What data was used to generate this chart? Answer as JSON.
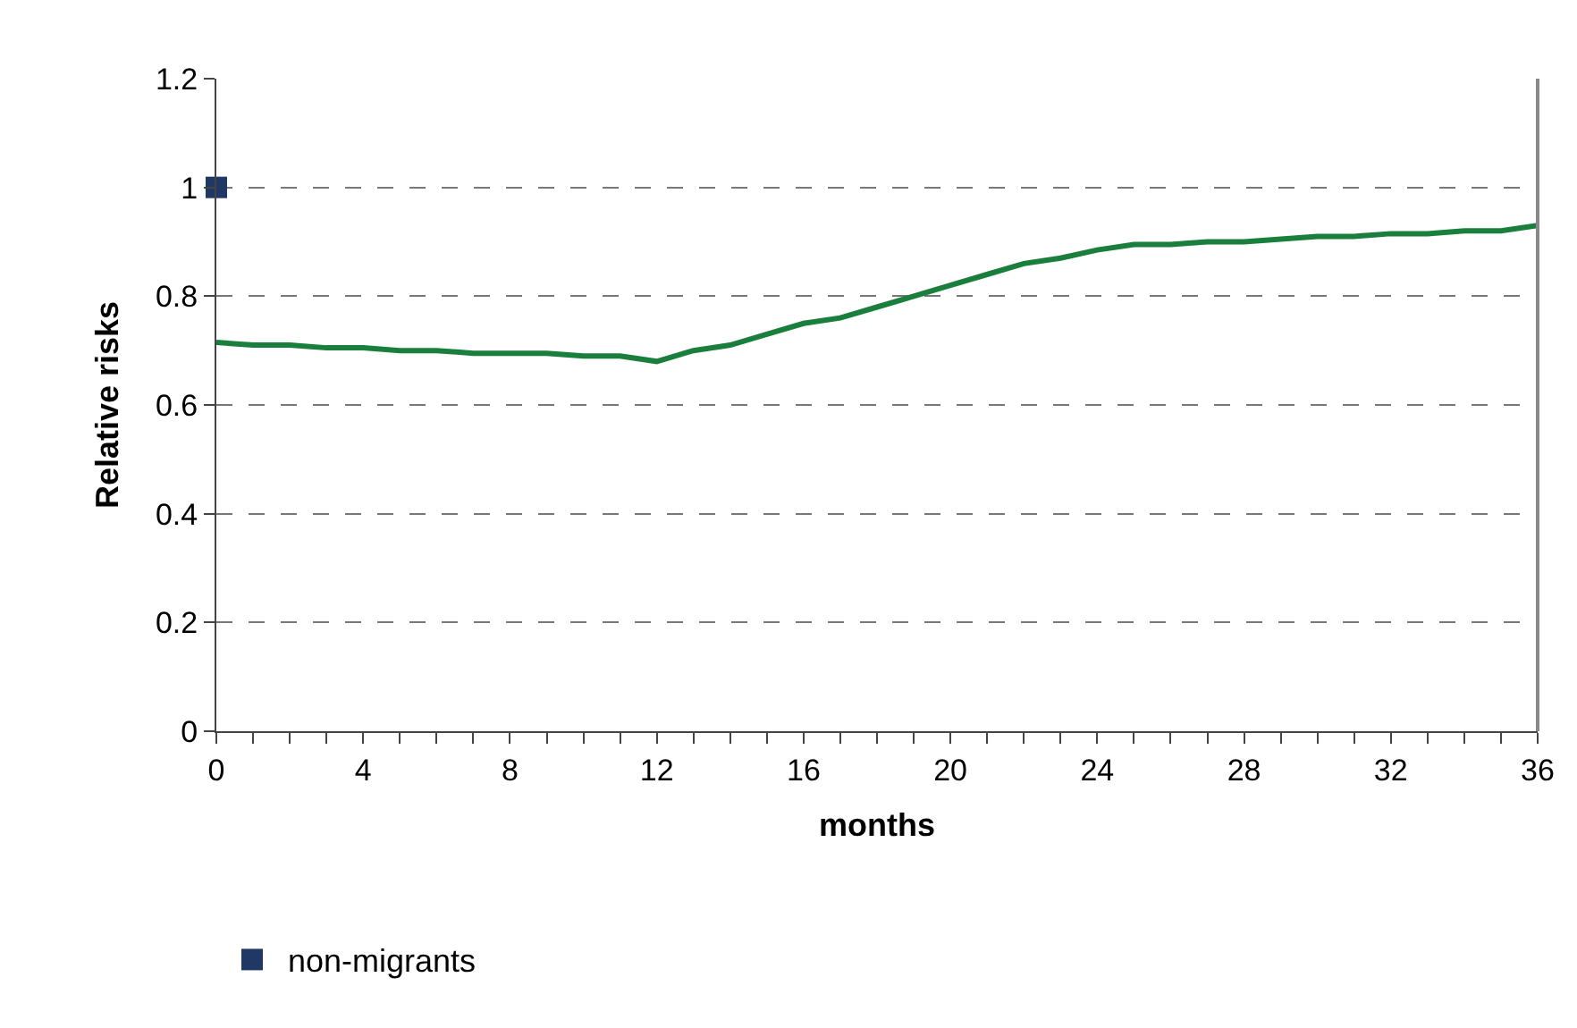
{
  "chart_data": {
    "type": "line",
    "xlabel": "months",
    "ylabel": "Relative risks",
    "xlim": [
      0,
      36
    ],
    "ylim": [
      0,
      1.2
    ],
    "xticks": [
      0,
      {
        "value": 1,
        "label": null
      },
      {
        "value": 2,
        "label": null
      },
      {
        "value": 3,
        "label": null
      },
      4,
      {
        "value": 5,
        "label": null
      },
      {
        "value": 6,
        "label": null
      },
      {
        "value": 7,
        "label": null
      },
      8,
      {
        "value": 9,
        "label": null
      },
      {
        "value": 10,
        "label": null
      },
      {
        "value": 11,
        "label": null
      },
      12,
      {
        "value": 13,
        "label": null
      },
      {
        "value": 14,
        "label": null
      },
      {
        "value": 15,
        "label": null
      },
      16,
      {
        "value": 17,
        "label": null
      },
      {
        "value": 18,
        "label": null
      },
      {
        "value": 19,
        "label": null
      },
      20,
      {
        "value": 21,
        "label": null
      },
      {
        "value": 22,
        "label": null
      },
      {
        "value": 23,
        "label": null
      },
      24,
      {
        "value": 25,
        "label": null
      },
      {
        "value": 26,
        "label": null
      },
      {
        "value": 27,
        "label": null
      },
      28,
      {
        "value": 29,
        "label": null
      },
      {
        "value": 30,
        "label": null
      },
      {
        "value": 31,
        "label": null
      },
      32,
      {
        "value": 33,
        "label": null
      },
      {
        "value": 34,
        "label": null
      },
      {
        "value": 35,
        "label": null
      },
      36
    ],
    "yticks": [
      0,
      0.2,
      0.4,
      0.6,
      0.8,
      1,
      1.2
    ],
    "grid": "y",
    "legend": "bottom left",
    "series": [
      {
        "color": "#1a7f3c",
        "marker": "none",
        "line_style": "solid",
        "x": [
          0,
          1,
          2,
          3,
          4,
          5,
          6,
          7,
          8,
          9,
          10,
          11,
          12,
          13,
          14,
          15,
          16,
          17,
          18,
          19,
          20,
          21,
          22,
          23,
          24,
          25,
          26,
          27,
          28,
          29,
          30,
          31,
          32,
          33,
          34,
          35,
          36
        ],
        "values": [
          0.715,
          0.71,
          0.71,
          0.705,
          0.705,
          0.7,
          0.7,
          0.695,
          0.695,
          0.695,
          0.69,
          0.69,
          0.68,
          0.7,
          0.71,
          0.73,
          0.75,
          0.76,
          0.78,
          0.8,
          0.82,
          0.84,
          0.86,
          0.87,
          0.885,
          0.895,
          0.895,
          0.9,
          0.9,
          0.905,
          0.91,
          0.91,
          0.915,
          0.915,
          0.92,
          0.92,
          0.93
        ]
      },
      {
        "type": "scatter",
        "name": "non-migrants",
        "color": "#1f3864",
        "marker": "square",
        "x": [
          0
        ],
        "values": [
          1
        ]
      }
    ]
  }
}
